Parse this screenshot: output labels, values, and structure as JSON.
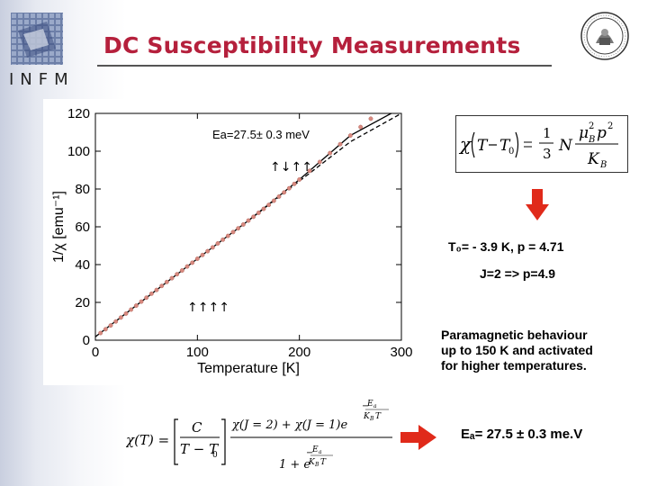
{
  "header": {
    "title": "DC Susceptibility Measurements",
    "infm_label": "INFM"
  },
  "chart_data": {
    "type": "scatter",
    "xlabel": "Temperature [K]",
    "ylabel": "1/χ  [emu⁻¹]",
    "xlim": [
      0,
      300
    ],
    "ylim": [
      0,
      120
    ],
    "xticks": [
      0,
      100,
      200,
      300
    ],
    "yticks": [
      0,
      20,
      40,
      60,
      80,
      100,
      120
    ],
    "grid": false,
    "annotations": {
      "ea_label": "Ea=27.5± 0.3 meV",
      "spin_label_high": "↑↓↑↑",
      "spin_label_low": "↑↑↑↑"
    },
    "series": [
      {
        "kind": "markers",
        "x": [
          5,
          10,
          15,
          20,
          25,
          30,
          35,
          40,
          45,
          50,
          55,
          60,
          65,
          70,
          75,
          80,
          85,
          90,
          95,
          100,
          105,
          110,
          115,
          120,
          125,
          130,
          135,
          140,
          145,
          150,
          155,
          160,
          165,
          170,
          175,
          180,
          185,
          190,
          195,
          200,
          210,
          220,
          230,
          240,
          250,
          260,
          270,
          280,
          290
        ],
        "values": [
          3.8,
          5.8,
          7.8,
          9.9,
          12.0,
          14.1,
          16.2,
          18.3,
          20.4,
          22.5,
          24.6,
          26.6,
          28.7,
          30.8,
          32.8,
          34.9,
          36.9,
          39.0,
          41.0,
          43.1,
          45.1,
          47.1,
          49.1,
          51.2,
          53.2,
          55.2,
          57.2,
          59.2,
          61.2,
          63.3,
          65.3,
          67.4,
          69.5,
          71.6,
          73.8,
          76.0,
          78.2,
          80.4,
          82.7,
          85.0,
          89.6,
          94.3,
          99.0,
          103.7,
          108.3,
          112.8,
          117.2,
          121.4,
          125.5
        ]
      },
      {
        "kind": "fit-solid",
        "x": [
          0,
          50,
          100,
          150,
          200,
          250,
          290
        ],
        "values": [
          1.8,
          22.5,
          43.1,
          63.3,
          85.0,
          108.3,
          125.5
        ]
      },
      {
        "kind": "fit-dashed",
        "x": [
          150,
          200,
          250,
          300
        ],
        "values": [
          63.3,
          84.2,
          105.0,
          126.0
        ]
      }
    ]
  },
  "formula_top": {
    "chi": "χ",
    "T": "T",
    "T0": "T",
    "T0_sub": "0",
    "one": "1",
    "three": "3",
    "N": "N",
    "mu": "μ",
    "mu_sub": "B",
    "sq": "2",
    "p": "p",
    "K": "K",
    "K_sub": "B"
  },
  "results": {
    "t0_line": "T₀= - 3.9 K,  p = 4.71",
    "j_line": "J=2  =>  p=4.9",
    "para_1": "Paramagnetic behaviour",
    "para_2": "up to 150 K and activated",
    "para_3": "for higher temperatures.",
    "ea_result": "Eₐ= 27.5 ± 0.3 me.V"
  },
  "formula_bottom": {
    "lhs": "χ(T) =",
    "C": "C",
    "T_minus_T0": "T − T",
    "T0_sub": "0",
    "numerator": "χ(J = 2) + χ(J = 1)e",
    "one_plus_e": "1 + e",
    "exp_num": "E",
    "exp_num_sub": "a",
    "exp_den": "K",
    "exp_den_sub": "B",
    "exp_T": "T",
    "minus": "−"
  },
  "colors": {
    "title": "#b5203c",
    "arrow": "#e02a1a",
    "marker": "#d88a80"
  }
}
